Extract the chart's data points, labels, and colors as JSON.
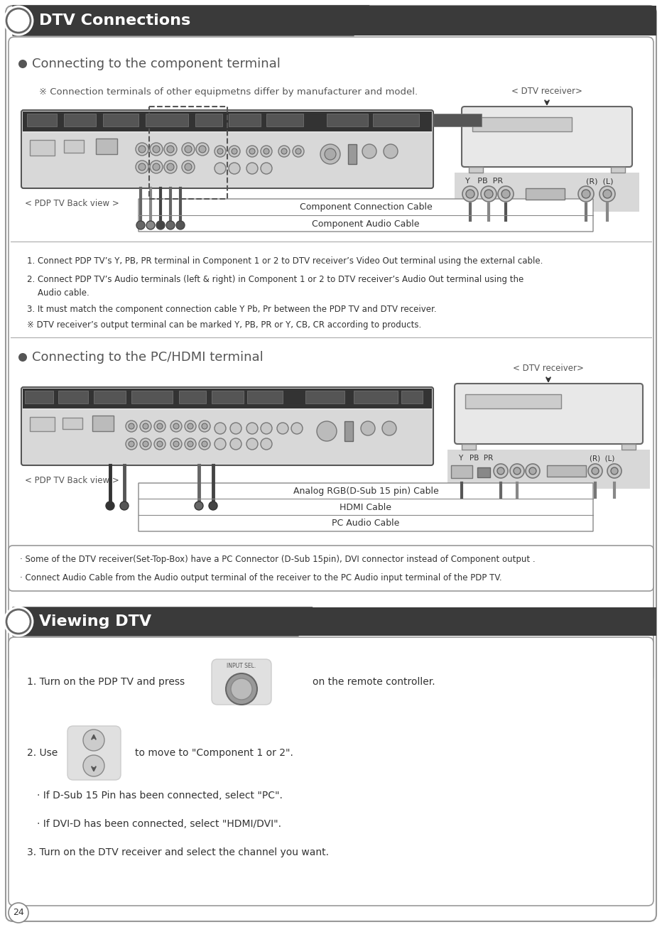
{
  "page_bg": "#ffffff",
  "header1_bg": "#3a3a3a",
  "header1_text": "DTV Connections",
  "header2_bg": "#3a3a3a",
  "header2_text": "Viewing DTV",
  "section1_title": "Connecting to the component terminal",
  "section2_title": "Connecting to the PC/HDMI terminal",
  "note_symbol": "※",
  "note1_text": " Connection terminals of other equipmetns differ by manufacturer and model.",
  "cable_labels_1": [
    "Component Connection Cable",
    "Component Audio Cable"
  ],
  "cable_labels_2": [
    "Analog RGB(D-Sub 15 pin) Cable",
    "HDMI Cable",
    "PC Audio Cable"
  ],
  "pdp_back_label": "< PDP TV Back view >",
  "dtv_receiver_label": "< DTV receiver>",
  "instructions1": [
    "1. Connect PDP TV’s Y, PB, PR terminal in Component 1 or 2 to DTV receiver’s Video Out terminal using the external cable.",
    "2. Connect PDP TV’s Audio terminals (left & right) in Component 1 or 2 to DTV receiver’s Audio Out terminal using the",
    "    Audio cable.",
    "3. It must match the component connection cable Y Pb, Pr between the PDP TV and DTV receiver.",
    "※ DTV receiver’s output terminal can be marked Y, PB, PR or Y, CB, CR according to products."
  ],
  "note2_lines": [
    "· Some of the DTV receiver(Set-Top-Box) have a PC Connector (D-Sub 15pin), DVI connector instead of Component output .",
    "· Connect Audio Cable from the Audio output terminal of the receiver to the PC Audio input terminal of the PDP TV."
  ],
  "viewing_steps": [
    "1. Turn on the PDP TV and press",
    "on the remote controller.",
    "2. Use",
    "to move to \"Component 1 or 2\".",
    "· If D-Sub 15 Pin has been connected, select \"PC\".",
    "· If DVI-D has been connected, select \"HDMI/DVI\".",
    "3. Turn on the DTV receiver and select the channel you want."
  ],
  "page_number": "24",
  "y_pb_pr": "Y   PB  PR",
  "rl": "(R)  (L)"
}
